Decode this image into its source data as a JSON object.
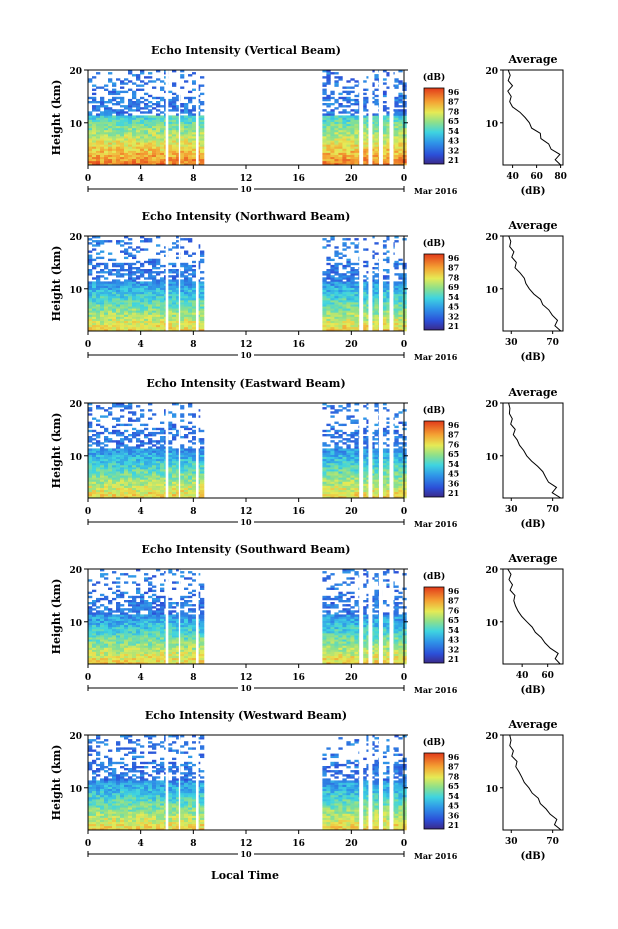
{
  "figure": {
    "xlabel": "Local Time",
    "date_label": "Mar 2016",
    "day_label": "10",
    "height_label": "Height (km)",
    "avg_title": "Average",
    "avg_xlabel": "(dB)",
    "cbar_label": "(dB)"
  },
  "chart_data": [
    {
      "type": "heatmap",
      "title": "Echo Intensity (Vertical Beam)",
      "ylabel": "Height (km)",
      "xlabel": "Local Time",
      "x_ticks": [
        "0",
        "4",
        "8",
        "12",
        "16",
        "20",
        "0"
      ],
      "x_range_hours": [
        0,
        24
      ],
      "y_ticks": [
        "10",
        "20"
      ],
      "y_range_km": [
        2,
        20
      ],
      "data_time_ranges_hours": [
        [
          0,
          8.6
        ],
        [
          17.8,
          23.9
        ]
      ],
      "colorbar": {
        "label": "(dB)",
        "ticks": [
          "96",
          "87",
          "78",
          "65",
          "54",
          "43",
          "32",
          "21"
        ]
      },
      "average_profile": {
        "type": "line",
        "title": "Average",
        "xlabel": "(dB)",
        "x_ticks": [
          "40",
          "60",
          "80"
        ],
        "xlim": [
          32,
          82
        ],
        "y_ticks": [
          "10",
          "20"
        ],
        "height_km": [
          2,
          3,
          4,
          5,
          6,
          7,
          8,
          9,
          10,
          11,
          12,
          13,
          14,
          15,
          16,
          17,
          18,
          19,
          20
        ],
        "intensity_db": [
          80,
          76,
          79,
          72,
          70,
          64,
          63,
          56,
          54,
          50,
          46,
          40,
          38,
          39,
          36,
          40,
          36,
          38,
          36
        ]
      }
    },
    {
      "type": "heatmap",
      "title": "Echo Intensity (Northward Beam)",
      "ylabel": "Height (km)",
      "xlabel": "Local Time",
      "x_ticks": [
        "0",
        "4",
        "8",
        "12",
        "16",
        "20",
        "0"
      ],
      "x_range_hours": [
        0,
        24
      ],
      "y_ticks": [
        "10",
        "20"
      ],
      "y_range_km": [
        2,
        20
      ],
      "data_time_ranges_hours": [
        [
          0,
          8.6
        ],
        [
          17.8,
          23.9
        ]
      ],
      "colorbar": {
        "label": "(dB)",
        "ticks": [
          "96",
          "87",
          "78",
          "69",
          "54",
          "45",
          "32",
          "21"
        ]
      },
      "average_profile": {
        "type": "line",
        "title": "Average",
        "xlabel": "(dB)",
        "x_ticks": [
          "30",
          "70"
        ],
        "xlim": [
          22,
          80
        ],
        "y_ticks": [
          "10",
          "20"
        ],
        "height_km": [
          2,
          3,
          4,
          5,
          6,
          7,
          8,
          9,
          10,
          11,
          12,
          13,
          14,
          15,
          16,
          17,
          18,
          19,
          20
        ],
        "intensity_db": [
          78,
          72,
          75,
          70,
          66,
          60,
          58,
          52,
          47,
          44,
          42,
          38,
          34,
          35,
          30,
          32,
          28,
          30,
          27
        ]
      }
    },
    {
      "type": "heatmap",
      "title": "Echo Intensity (Eastward Beam)",
      "ylabel": "Height (km)",
      "xlabel": "Local Time",
      "x_ticks": [
        "0",
        "4",
        "8",
        "12",
        "16",
        "20",
        "0"
      ],
      "x_range_hours": [
        0,
        24
      ],
      "y_ticks": [
        "10",
        "20"
      ],
      "y_range_km": [
        2,
        20
      ],
      "data_time_ranges_hours": [
        [
          0,
          8.6
        ],
        [
          17.8,
          23.9
        ]
      ],
      "colorbar": {
        "label": "(dB)",
        "ticks": [
          "96",
          "87",
          "76",
          "65",
          "54",
          "45",
          "36",
          "21"
        ]
      },
      "average_profile": {
        "type": "line",
        "title": "Average",
        "xlabel": "(dB)",
        "x_ticks": [
          "30",
          "70"
        ],
        "xlim": [
          22,
          80
        ],
        "y_ticks": [
          "10",
          "20"
        ],
        "height_km": [
          2,
          3,
          4,
          5,
          6,
          7,
          8,
          9,
          10,
          11,
          12,
          13,
          14,
          15,
          16,
          17,
          18,
          19,
          20
        ],
        "intensity_db": [
          78,
          70,
          74,
          66,
          63,
          60,
          55,
          50,
          45,
          42,
          38,
          36,
          32,
          34,
          30,
          31,
          28,
          29,
          27
        ]
      }
    },
    {
      "type": "heatmap",
      "title": "Echo Intensity (Southward Beam)",
      "ylabel": "Height (km)",
      "xlabel": "Local Time",
      "x_ticks": [
        "0",
        "4",
        "8",
        "12",
        "16",
        "20",
        "0"
      ],
      "x_range_hours": [
        0,
        24
      ],
      "y_ticks": [
        "10",
        "20"
      ],
      "y_range_km": [
        2,
        20
      ],
      "data_time_ranges_hours": [
        [
          0,
          8.6
        ],
        [
          17.8,
          23.9
        ]
      ],
      "colorbar": {
        "label": "(dB)",
        "ticks": [
          "96",
          "87",
          "76",
          "65",
          "54",
          "43",
          "32",
          "21"
        ]
      },
      "average_profile": {
        "type": "line",
        "title": "Average",
        "xlabel": "(dB)",
        "x_ticks": [
          "40",
          "60"
        ],
        "xlim": [
          25,
          72
        ],
        "y_ticks": [
          "10",
          "20"
        ],
        "height_km": [
          2,
          3,
          4,
          5,
          6,
          7,
          8,
          9,
          10,
          11,
          12,
          13,
          14,
          15,
          16,
          17,
          18,
          19,
          20
        ],
        "intensity_db": [
          70,
          66,
          68,
          62,
          58,
          55,
          50,
          48,
          44,
          40,
          37,
          35,
          33,
          34,
          31,
          32,
          30,
          31,
          29
        ]
      }
    },
    {
      "type": "heatmap",
      "title": "Echo Intensity (Westward Beam)",
      "ylabel": "Height (km)",
      "xlabel": "Local Time",
      "x_ticks": [
        "0",
        "4",
        "8",
        "12",
        "16",
        "20",
        "0"
      ],
      "x_range_hours": [
        0,
        24
      ],
      "y_ticks": [
        "10",
        "20"
      ],
      "y_range_km": [
        2,
        20
      ],
      "data_time_ranges_hours": [
        [
          0,
          8.6
        ],
        [
          17.8,
          23.9
        ]
      ],
      "colorbar": {
        "label": "(dB)",
        "ticks": [
          "96",
          "87",
          "78",
          "65",
          "54",
          "45",
          "36",
          "21"
        ]
      },
      "average_profile": {
        "type": "line",
        "title": "Average",
        "xlabel": "(dB)",
        "x_ticks": [
          "30",
          "70"
        ],
        "xlim": [
          22,
          80
        ],
        "y_ticks": [
          "10",
          "20"
        ],
        "height_km": [
          2,
          3,
          4,
          5,
          6,
          7,
          8,
          9,
          10,
          11,
          12,
          13,
          14,
          15,
          16,
          17,
          18,
          19,
          20
        ],
        "intensity_db": [
          78,
          72,
          74,
          68,
          64,
          58,
          56,
          50,
          47,
          43,
          40,
          37,
          34,
          35,
          31,
          32,
          29,
          30,
          28
        ]
      }
    }
  ]
}
